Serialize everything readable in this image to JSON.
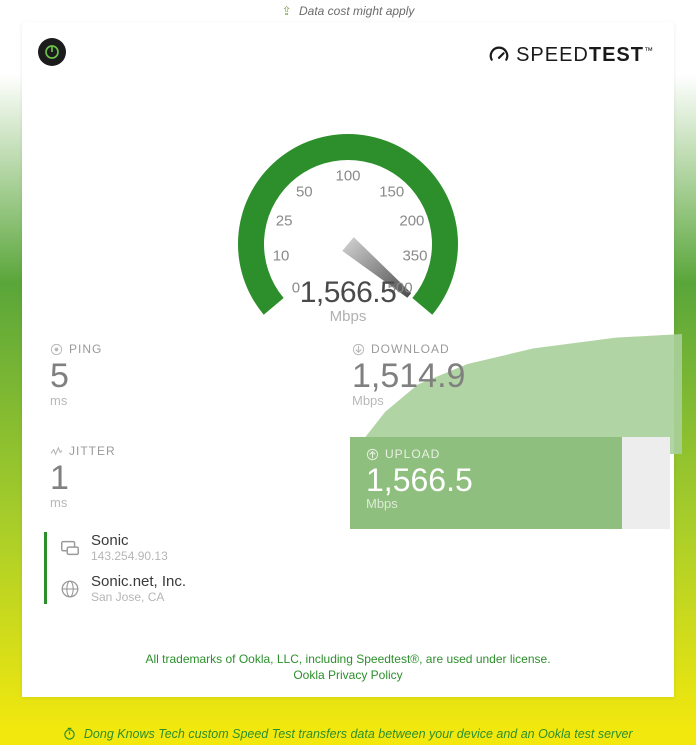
{
  "top_notice": "Data cost might apply",
  "brand": {
    "name_light": "SPEED",
    "name_bold": "TEST"
  },
  "gauge": {
    "type": "radial-gauge",
    "value": "1,566.5",
    "unit": "Mbps",
    "ring_color": "#2c8f2c",
    "ring_bg": "#e7e7e7",
    "ring_width": 26,
    "needle_color_start": "#cfcfcf",
    "needle_color_end": "#4a4a4a",
    "start_angle_deg": -220,
    "end_angle_deg": 40,
    "ticks": [
      {
        "label": "0",
        "angle": -220
      },
      {
        "label": "10",
        "angle": -190
      },
      {
        "label": "25",
        "angle": -160
      },
      {
        "label": "50",
        "angle": -130
      },
      {
        "label": "100",
        "angle": -90
      },
      {
        "label": "150",
        "angle": -50
      },
      {
        "label": "200",
        "angle": -20
      },
      {
        "label": "350",
        "angle": 10
      },
      {
        "label": "500",
        "angle": 40
      }
    ]
  },
  "metrics": {
    "ping": {
      "label": "PING",
      "value": "5",
      "unit": "ms"
    },
    "jitter": {
      "label": "JITTER",
      "value": "1",
      "unit": "ms"
    },
    "download": {
      "label": "DOWNLOAD",
      "value": "1,514.9",
      "unit": "Mbps"
    },
    "upload": {
      "label": "UPLOAD",
      "value": "1,566.5",
      "unit": "Mbps",
      "bar_fill_color": "#8fbf7e",
      "bar_fill_ratio": 0.85
    }
  },
  "download_graph": {
    "type": "area",
    "fill_color": "#a9cf9a",
    "fill_opacity": 0.9,
    "points_x": [
      0,
      0.1,
      0.2,
      0.35,
      0.55,
      0.8,
      1.0
    ],
    "points_y": [
      0.0,
      0.35,
      0.58,
      0.75,
      0.88,
      0.97,
      1.0
    ]
  },
  "provider": {
    "isp_name": "Sonic",
    "ip": "143.254.90.13",
    "server_name": "Sonic.net, Inc.",
    "server_location": "San Jose, CA"
  },
  "footer": {
    "line1": "All trademarks of Ookla, LLC, including Speedtest®, are used under license.",
    "line2": "Ookla Privacy Policy"
  },
  "bottom_notice": "Dong Knows Tech custom Speed Test transfers data between your device and an Ookla test server",
  "colors": {
    "brand_green": "#2c8f2c",
    "text_muted": "#9a9a9a",
    "card_bg": "#ffffff"
  }
}
